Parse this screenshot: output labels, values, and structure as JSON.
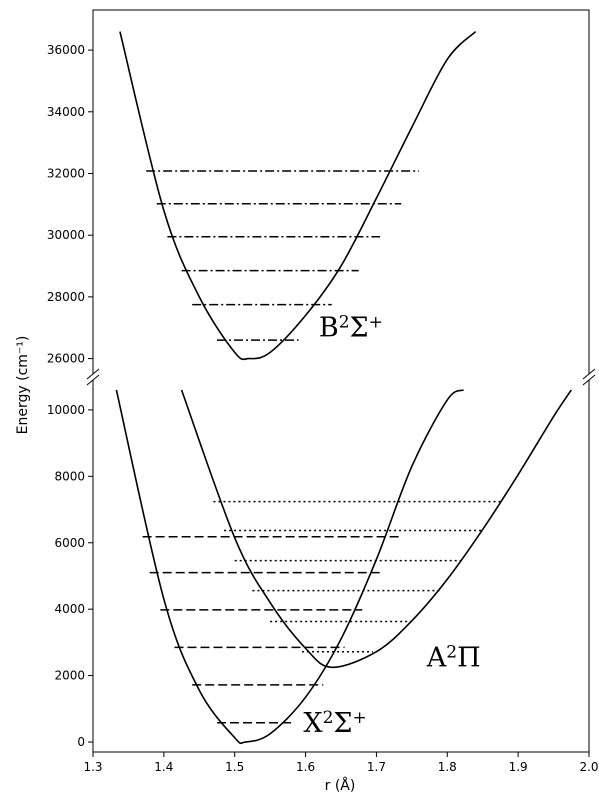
{
  "chart_data": {
    "type": "line",
    "title": "",
    "xlabel": "r (Å)",
    "ylabel": "Energy (cm⁻¹)",
    "xlim": [
      1.3,
      2.0
    ],
    "broken_y_axis": true,
    "upper_panel": {
      "ylim": [
        25500,
        37300
      ],
      "yticks": [
        "26000",
        "28000",
        "30000",
        "32000",
        "34000",
        "36000"
      ]
    },
    "lower_panel": {
      "ylim": [
        -300,
        10900
      ],
      "yticks": [
        "0",
        "2000",
        "4000",
        "6000",
        "8000",
        "10000"
      ]
    },
    "xticks": [
      "1.3",
      "1.4",
      "1.5",
      "1.6",
      "1.7",
      "1.8",
      "1.9",
      "2.0"
    ],
    "states": [
      {
        "name": "X²Σ⁺",
        "label": {
          "main": "X",
          "sup1": "2",
          "greek": "Σ",
          "sup2": "+"
        },
        "panel": "lower",
        "re": 1.515,
        "Te": 0,
        "potential_curve": {
          "r": [
            1.333,
            1.4,
            1.45,
            1.5,
            1.515,
            1.55,
            1.6,
            1.65,
            1.7,
            1.75,
            1.8,
            1.823
          ],
          "E": [
            10600,
            4300,
            1560,
            130,
            0,
            250,
            1350,
            3100,
            5500,
            8300,
            10300,
            10600
          ]
        },
        "vibrational_levels": [
          {
            "E": 580,
            "r_min": 1.475,
            "r_max": 1.585
          },
          {
            "E": 1720,
            "r_min": 1.44,
            "r_max": 1.625
          },
          {
            "E": 2850,
            "r_min": 1.415,
            "r_max": 1.655
          },
          {
            "E": 3980,
            "r_min": 1.395,
            "r_max": 1.68
          },
          {
            "E": 5100,
            "r_min": 1.38,
            "r_max": 1.71
          },
          {
            "E": 6180,
            "r_min": 1.37,
            "r_max": 1.735
          }
        ],
        "level_style": "dashed"
      },
      {
        "name": "A²Π",
        "label": {
          "main": "A",
          "sup1": "2",
          "greek": "Π",
          "sup2": ""
        },
        "panel": "lower",
        "re": 1.637,
        "Te": 2250,
        "potential_curve": {
          "r": [
            1.425,
            1.5,
            1.55,
            1.6,
            1.637,
            1.7,
            1.75,
            1.8,
            1.85,
            1.9,
            1.95,
            1.975
          ],
          "E": [
            10600,
            6150,
            4200,
            2820,
            2250,
            2720,
            3650,
            4900,
            6400,
            8050,
            9800,
            10600
          ]
        },
        "vibrational_levels": [
          {
            "E": 2720,
            "r_min": 1.595,
            "r_max": 1.695
          },
          {
            "E": 3630,
            "r_min": 1.55,
            "r_max": 1.75
          },
          {
            "E": 4560,
            "r_min": 1.525,
            "r_max": 1.79
          },
          {
            "E": 5460,
            "r_min": 1.5,
            "r_max": 1.82
          },
          {
            "E": 6370,
            "r_min": 1.485,
            "r_max": 1.85
          },
          {
            "E": 7240,
            "r_min": 1.47,
            "r_max": 1.875
          }
        ],
        "level_style": "dotted"
      },
      {
        "name": "B²Σ⁺",
        "label": {
          "main": "B",
          "sup1": "2",
          "greek": "Σ",
          "sup2": "+"
        },
        "panel": "upper",
        "re": 1.52,
        "Te": 26000,
        "potential_curve": {
          "r": [
            1.338,
            1.4,
            1.45,
            1.5,
            1.52,
            1.55,
            1.6,
            1.65,
            1.7,
            1.75,
            1.8,
            1.84
          ],
          "E": [
            36600,
            30800,
            28000,
            26200,
            26000,
            26200,
            27400,
            29000,
            31200,
            33500,
            35700,
            36600
          ]
        },
        "vibrational_levels": [
          {
            "E": 26600,
            "r_min": 1.475,
            "r_max": 1.59
          },
          {
            "E": 27750,
            "r_min": 1.44,
            "r_max": 1.637
          },
          {
            "E": 28850,
            "r_min": 1.425,
            "r_max": 1.675
          },
          {
            "E": 29950,
            "r_min": 1.405,
            "r_max": 1.705
          },
          {
            "E": 31020,
            "r_min": 1.39,
            "r_max": 1.735
          },
          {
            "E": 32080,
            "r_min": 1.375,
            "r_max": 1.76
          }
        ],
        "level_style": "dashdot"
      }
    ],
    "colors": {
      "line": "#000000",
      "background": "#ffffff"
    }
  }
}
